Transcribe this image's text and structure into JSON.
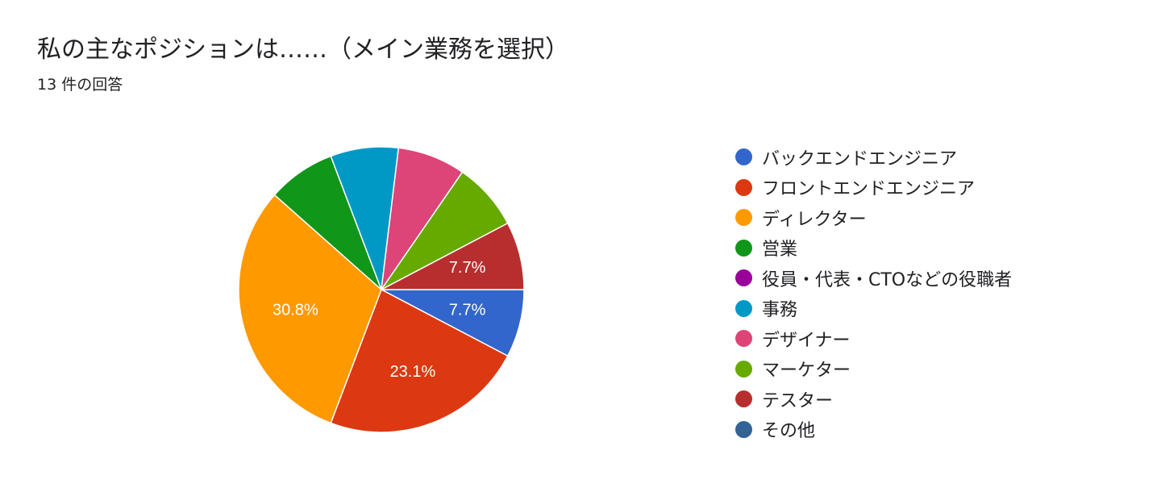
{
  "header": {
    "title": "私の主なポジションは……（メイン業務を選択）",
    "response_count": "13 件の回答"
  },
  "chart_data": {
    "type": "pie",
    "total_responses": 13,
    "slices": [
      {
        "name": "バックエンドエンジニア",
        "value": 1,
        "percent_label": "7.7%",
        "color": "#3366cc"
      },
      {
        "name": "フロントエンドエンジニア",
        "value": 3,
        "percent_label": "23.1%",
        "color": "#dc3912"
      },
      {
        "name": "ディレクター",
        "value": 4,
        "percent_label": "30.8%",
        "color": "#ff9900"
      },
      {
        "name": "営業",
        "value": 1,
        "percent_label": "",
        "color": "#109618"
      },
      {
        "name": "役員・代表・CTOなどの役職者",
        "value": 0,
        "percent_label": "",
        "color": "#990099"
      },
      {
        "name": "事務",
        "value": 1,
        "percent_label": "",
        "color": "#0099c6"
      },
      {
        "name": "デザイナー",
        "value": 1,
        "percent_label": "",
        "color": "#dd4477"
      },
      {
        "name": "マーケター",
        "value": 1,
        "percent_label": "",
        "color": "#66aa00"
      },
      {
        "name": "テスター",
        "value": 1,
        "percent_label": "7.7%",
        "color": "#b82e2e"
      },
      {
        "name": "その他",
        "value": 0,
        "percent_label": "",
        "color": "#316395"
      }
    ],
    "legend_position": "right"
  }
}
